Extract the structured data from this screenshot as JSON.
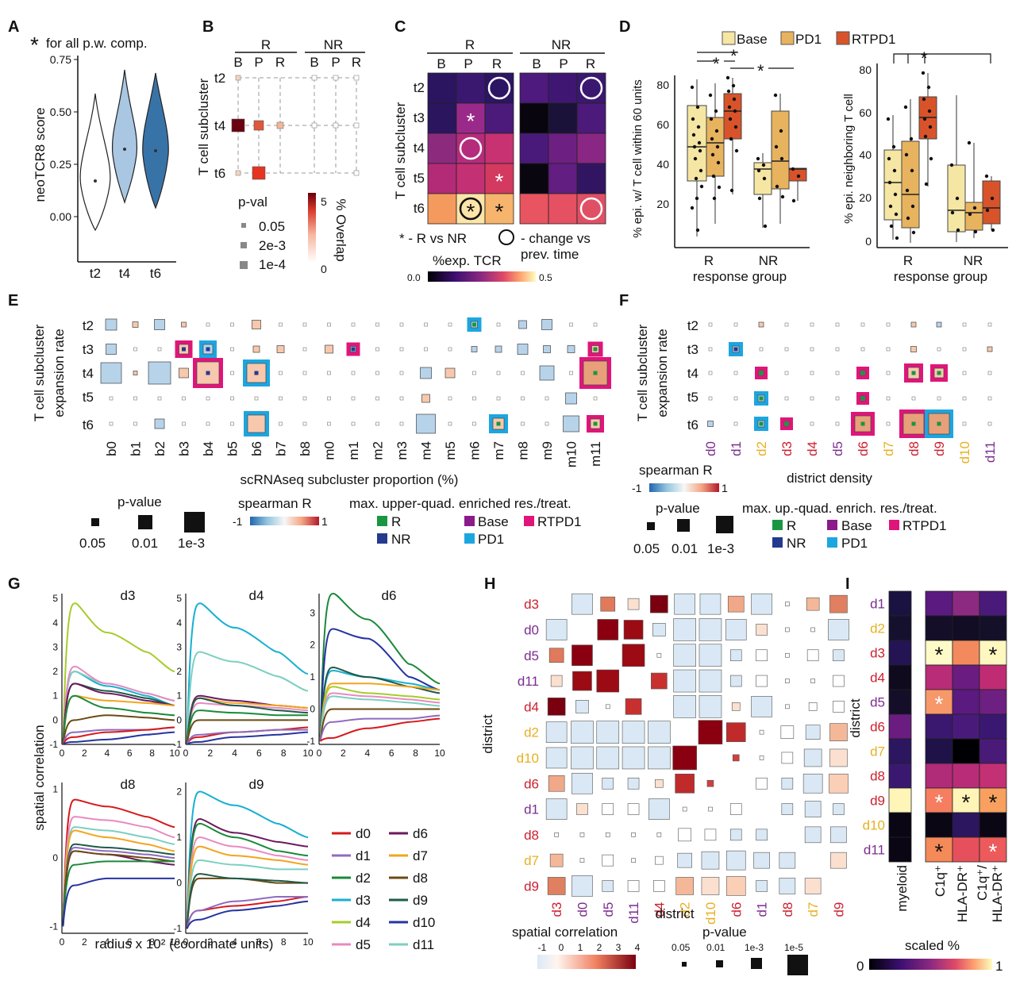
{
  "colors": {
    "R": "#1a9641",
    "NR": "#243a8f",
    "Base": "#8b1a8b",
    "PD1": "#1ca6e0",
    "RTPD1": "#e0157a",
    "box_base": "#f5e6a3",
    "box_pd1": "#e8b35e",
    "box_rtpd1": "#d9532a"
  },
  "district_colors": {
    "d0": "#7b2d8e",
    "d1": "#7b2d8e",
    "d2": "#e8b020",
    "d3": "#cc1f2e",
    "d4": "#cc1f2e",
    "d5": "#7b2d8e",
    "d6": "#cc1f2e",
    "d7": "#e8b020",
    "d8": "#cc1f2e",
    "d9": "#cc1f2e",
    "d10": "#e8b020",
    "d11": "#7b2d8e"
  },
  "panelA": {
    "letter": "A",
    "note": "for all p.w. comp.",
    "star": "*",
    "ylabel": "neoTCR8 score",
    "yticks": [
      "0.75",
      "0.50",
      "0.25",
      "0.00"
    ],
    "xticks": [
      "t2",
      "t4",
      "t6"
    ]
  },
  "panelB": {
    "letter": "B",
    "groupR": "R",
    "groupNR": "NR",
    "cols": [
      "B",
      "P",
      "R",
      "B",
      "P",
      "R"
    ],
    "rows": [
      "t2",
      "t4",
      "t6"
    ],
    "ylabel": "T cell subcluster",
    "pval_title": "p-val",
    "pvals": [
      "0.05",
      "2e-3",
      "1e-4"
    ],
    "cbar_label": "% Overlap",
    "cbar_max": "5",
    "cbar_min": "0"
  },
  "panelC": {
    "letter": "C",
    "groupR": "R",
    "groupNR": "NR",
    "cols": [
      "B",
      "P",
      "R",
      "B",
      "P",
      "R"
    ],
    "rows": [
      "t2",
      "t3",
      "t4",
      "t5",
      "t6"
    ],
    "ylabel": "T cell subcluster",
    "legend1": "* - R vs NR",
    "legend2": "- change vs",
    "legend3": "prev. time",
    "cbar_title": "%exp. TCR",
    "cbar_min": "0.0",
    "cbar_max": "0.5",
    "star": "*"
  },
  "panelD": {
    "letter": "D",
    "legend": [
      "Base",
      "PD1",
      "RTPD1"
    ],
    "ylabel1": "% epi. w/ T cell within 60 units",
    "ylabel2": "% epi. neighboring T cell",
    "yticks1": [
      "80",
      "60",
      "40",
      "20"
    ],
    "yticks2": [
      "80",
      "60",
      "40",
      "20",
      "0"
    ],
    "xticks": [
      "R",
      "NR"
    ],
    "xlabel": "response group",
    "star": "*"
  },
  "panelE": {
    "letter": "E",
    "ylabel1": "T cell subcluster",
    "ylabel2": "expansion rate",
    "rows": [
      "t2",
      "t3",
      "t4",
      "t5",
      "t6"
    ],
    "cols": [
      "b0",
      "b1",
      "b2",
      "b3",
      "b4",
      "b5",
      "b6",
      "b7",
      "b8",
      "m0",
      "m1",
      "m2",
      "m3",
      "m4",
      "m5",
      "m6",
      "m7",
      "m8",
      "m9",
      "m10",
      "m11"
    ],
    "xlabel": "scRNAseq subcluster proportion (%)",
    "pv_title": "p-value",
    "pvals": [
      "0.05",
      "0.01",
      "1e-3"
    ],
    "sp_title": "spearman R",
    "sp_min": "-1",
    "sp_max": "1",
    "enr_title": "max. upper-quad. enriched res./treat.",
    "enr": [
      "R",
      "Base",
      "RTPD1",
      "NR",
      "PD1"
    ]
  },
  "panelF": {
    "letter": "F",
    "ylabel1": "T cell subcluster",
    "ylabel2": "expansion rate",
    "rows": [
      "t2",
      "t3",
      "t4",
      "t5",
      "t6"
    ],
    "cols": [
      "d0",
      "d1",
      "d2",
      "d3",
      "d4",
      "d5",
      "d6",
      "d7",
      "d8",
      "d9",
      "d10",
      "d11"
    ],
    "xlabel": "district density",
    "sp_title": "spearman R",
    "sp_min": "-1",
    "sp_max": "1",
    "pv_title": "p-value",
    "pvals": [
      "0.05",
      "0.01",
      "1e-3"
    ],
    "enr_title": "max. up.-quad. enrich. res./treat.",
    "enr": [
      "R",
      "Base",
      "RTPD1",
      "NR",
      "PD1"
    ]
  },
  "panelG": {
    "letter": "G",
    "ylabel": "spatial correlation",
    "xlabel": "radius x 10² (coordinate units)",
    "titles": [
      "d3",
      "d4",
      "d6",
      "d8",
      "d9"
    ],
    "xticks": [
      "0",
      "2",
      "4",
      "6",
      "8",
      "10"
    ],
    "yt_d3": [
      "5",
      "4",
      "3",
      "2",
      "1",
      "0",
      "-1"
    ],
    "yt_d4": [
      "5",
      "4",
      "3",
      "2",
      "1",
      "0",
      "-1"
    ],
    "yt_d6": [
      "3",
      "2",
      "1",
      "0",
      "-1"
    ],
    "yt_d8": [
      "1",
      "0",
      "-1"
    ],
    "yt_d9": [
      "2",
      "1",
      "0",
      "-1"
    ],
    "legend": [
      "d0",
      "d6",
      "d1",
      "d7",
      "d2",
      "d8",
      "d3",
      "d9",
      "d4",
      "d10",
      "d5",
      "d11"
    ],
    "line_colors": {
      "d0": "#d7191c",
      "d1": "#8e6bbf",
      "d2": "#1a8a3a",
      "d3": "#17b0d0",
      "d4": "#a6cc2a",
      "d5": "#e88ac0",
      "d6": "#6b1a5e",
      "d7": "#f2a51f",
      "d8": "#6b4a12",
      "d9": "#1e5a4a",
      "d10": "#2633a0",
      "d11": "#7ccfc0"
    }
  },
  "panelH": {
    "letter": "H",
    "ylabel": "district",
    "xlabel": "district",
    "order": [
      "d3",
      "d0",
      "d5",
      "d11",
      "d4",
      "d2",
      "d10",
      "d6",
      "d1",
      "d8",
      "d7",
      "d9"
    ],
    "sc_title": "spatial correlation",
    "sc_ticks": [
      "-1",
      "0",
      "1",
      "2",
      "3",
      "4"
    ],
    "pv_title": "p-value",
    "pvals": [
      "0.05",
      "0.01",
      "1e-3",
      "1e-5"
    ]
  },
  "panelI": {
    "letter": "I",
    "ylabel": "district",
    "rows": [
      "d1",
      "d2",
      "d3",
      "d4",
      "d5",
      "d6",
      "d7",
      "d8",
      "d9",
      "d10",
      "d11"
    ],
    "xlab_myeloid": "myeloid",
    "xlab_c1q": "C1q⁺",
    "xlab_hla": "HLA-DR⁺",
    "xlab_both1": "C1q⁺/",
    "xlab_both2": "HLA-DR⁺",
    "cbar_title": "scaled %",
    "cbar_min": "0",
    "cbar_max": "1",
    "star": "*"
  }
}
